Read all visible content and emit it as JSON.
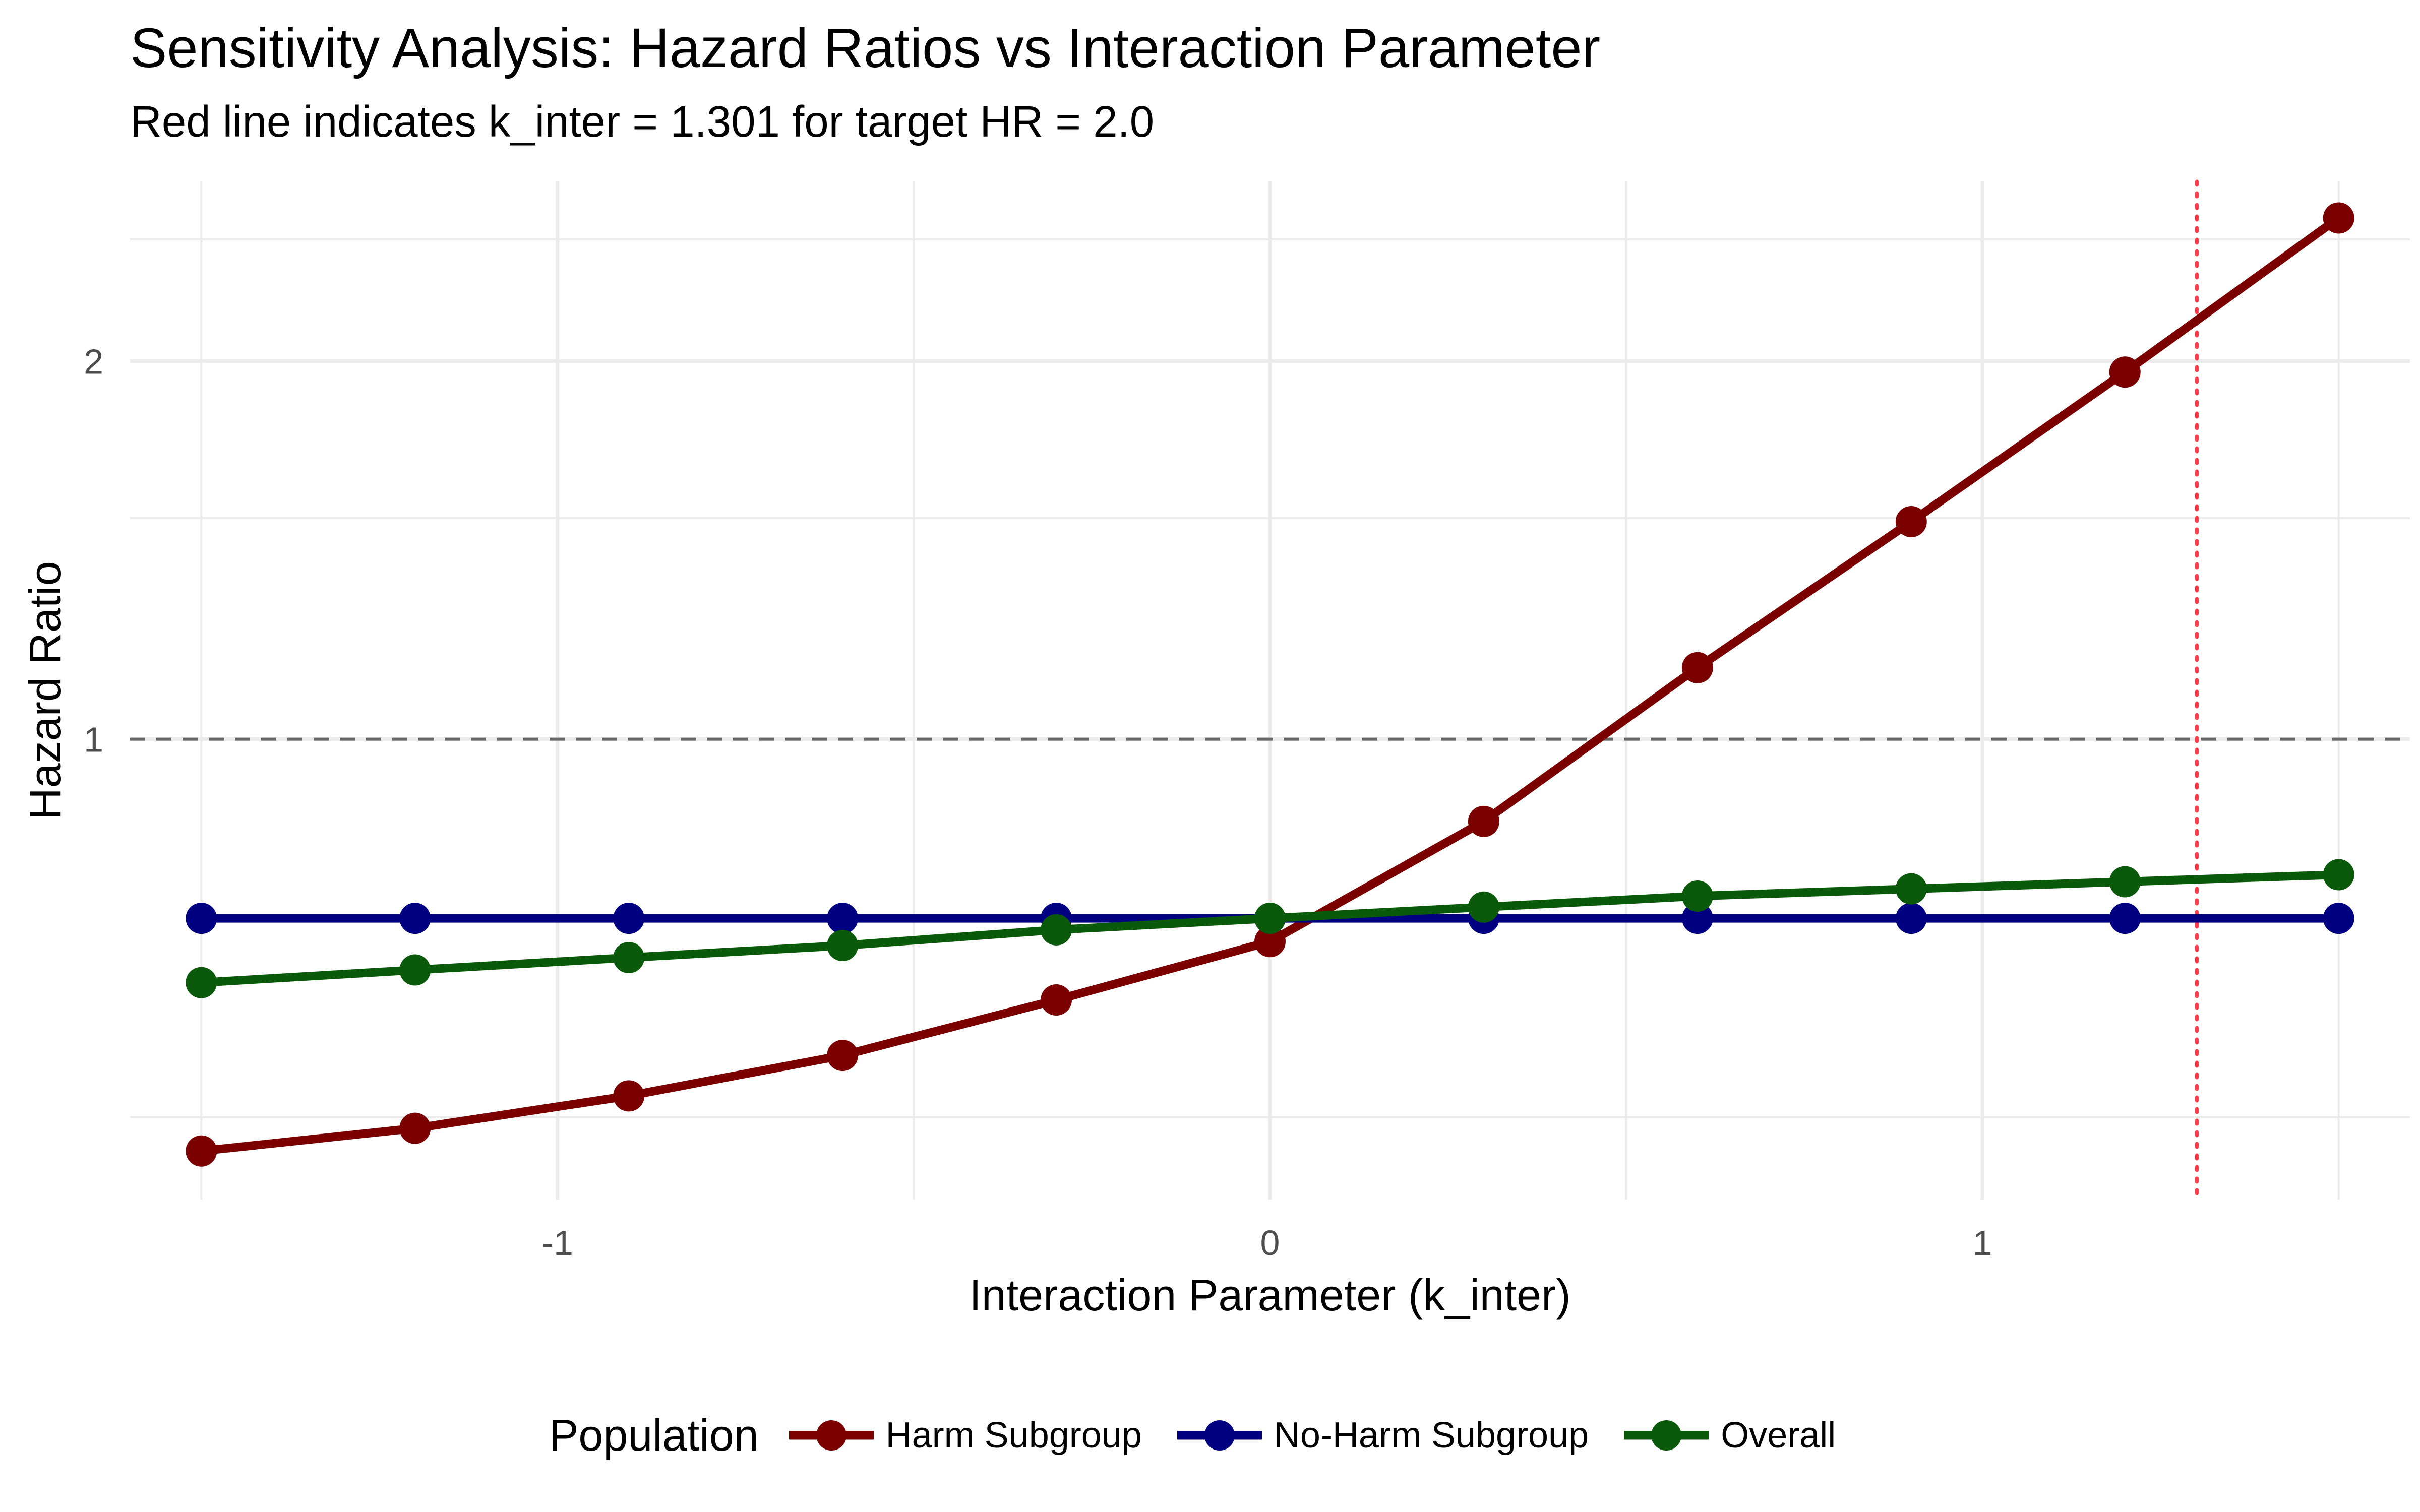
{
  "chart_data": {
    "type": "line",
    "title": "Sensitivity Analysis: Hazard Ratios vs Interaction Parameter",
    "subtitle": "Red line indicates k_inter = 1.301 for target HR = 2.0",
    "xlabel": "Interaction Parameter (k_inter)",
    "ylabel": "Hazard Ratio",
    "x_scale": "linear",
    "y_scale": "log",
    "xlim": [
      -1.6,
      1.6
    ],
    "ylim": [
      0.43,
      2.78
    ],
    "x_ticks": [
      -1,
      0,
      1
    ],
    "x_tick_labels": [
      "-1",
      "0",
      "1"
    ],
    "y_ticks": [
      1,
      2
    ],
    "y_tick_labels": [
      "1",
      "2"
    ],
    "x": [
      -1.5,
      -1.2,
      -0.9,
      -0.6,
      -0.3,
      0.0,
      0.3,
      0.6,
      0.9,
      1.2,
      1.5
    ],
    "series": [
      {
        "name": "Harm Subgroup",
        "color": "#7b0000",
        "values": [
          0.47,
          0.49,
          0.52,
          0.56,
          0.62,
          0.69,
          0.86,
          1.14,
          1.49,
          1.96,
          2.6
        ]
      },
      {
        "name": "No-Harm Subgroup",
        "color": "#000080",
        "values": [
          0.72,
          0.72,
          0.72,
          0.72,
          0.72,
          0.72,
          0.72,
          0.72,
          0.72,
          0.72,
          0.72
        ]
      },
      {
        "name": "Overall",
        "color": "#0b5a0b",
        "values": [
          0.64,
          0.655,
          0.67,
          0.685,
          0.705,
          0.72,
          0.735,
          0.75,
          0.76,
          0.77,
          0.78
        ]
      }
    ],
    "reference_lines": [
      {
        "orientation": "horizontal",
        "value": 1,
        "style": "dashed",
        "color": "#666666"
      },
      {
        "orientation": "vertical",
        "value": 1.301,
        "style": "dotted",
        "color": "#ff3b4a"
      }
    ],
    "grid": true,
    "legend": {
      "title": "Population",
      "position": "bottom"
    }
  }
}
